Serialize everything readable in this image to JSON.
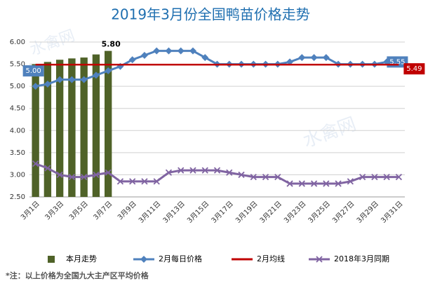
{
  "chart_data": {
    "type": "combo",
    "title": "2019年3月份全国鸭苗价格走势",
    "watermark": "水禽网",
    "footnote": "*注：以上价格为全国九大主产区平均价格",
    "categories": [
      "3月1日",
      null,
      "3月3日",
      null,
      "3月5日",
      null,
      "3月7日",
      null,
      "3月9日",
      null,
      "3月11日",
      null,
      "3月13日",
      null,
      "3月15日",
      null,
      "3月17日",
      null,
      "3月19日",
      null,
      "3月21日",
      null,
      "3月23日",
      null,
      "3月25日",
      null,
      "3月27日",
      null,
      "3月29日",
      null,
      "3月31日"
    ],
    "ylim": [
      2.5,
      6.0
    ],
    "yticks": [
      {
        "value": 2.5,
        "label": "2.50"
      },
      {
        "value": 3.0,
        "label": "3.00"
      },
      {
        "value": 3.5,
        "label": "3.50"
      },
      {
        "value": 4.0,
        "label": "4.00"
      },
      {
        "value": 4.5,
        "label": "4.50"
      },
      {
        "value": 5.0,
        "label": "5.00"
      },
      {
        "value": 5.5,
        "label": "5.50"
      },
      {
        "value": 6.0,
        "label": "6.00"
      }
    ],
    "grid": true,
    "legend": "bottom",
    "series": [
      {
        "name": "本月走势",
        "type": "bar",
        "color": "#4f6228",
        "values": [
          5.5,
          5.55,
          5.6,
          5.63,
          5.65,
          5.72,
          5.8,
          null,
          null,
          null,
          null,
          null,
          null,
          null,
          null,
          null,
          null,
          null,
          null,
          null,
          null,
          null,
          null,
          null,
          null,
          null,
          null,
          null,
          null,
          null,
          null
        ],
        "value_labels": [
          null,
          null,
          null,
          null,
          null,
          null,
          "5.80",
          null,
          null,
          null,
          null,
          null,
          null,
          null,
          null,
          null,
          null,
          null,
          null,
          null,
          null,
          null,
          null,
          null,
          null,
          null,
          null,
          null,
          null,
          null,
          null
        ]
      },
      {
        "name": "2月每日价格",
        "type": "line",
        "marker": "diamond",
        "color": "#4f81bd",
        "values": [
          5.0,
          5.05,
          5.15,
          5.15,
          5.15,
          5.25,
          5.35,
          5.45,
          5.6,
          5.7,
          5.8,
          5.8,
          5.8,
          5.8,
          5.65,
          5.5,
          5.5,
          5.5,
          5.5,
          5.5,
          5.5,
          5.55,
          5.65,
          5.65,
          5.65,
          5.5,
          5.5,
          5.5,
          5.5,
          5.55,
          5.55
        ],
        "value_labels": [
          "5.00",
          null,
          null,
          null,
          null,
          null,
          null,
          null,
          null,
          null,
          null,
          null,
          null,
          null,
          null,
          null,
          null,
          null,
          null,
          null,
          null,
          null,
          null,
          null,
          null,
          null,
          null,
          null,
          null,
          null,
          "5.55"
        ]
      },
      {
        "name": "2月均线",
        "type": "line",
        "marker": "none",
        "color": "#c00000",
        "values": [
          5.49,
          5.49,
          5.49,
          5.49,
          5.49,
          5.49,
          5.49,
          5.49,
          5.49,
          5.49,
          5.49,
          5.49,
          5.49,
          5.49,
          5.49,
          5.49,
          5.49,
          5.49,
          5.49,
          5.49,
          5.49,
          5.49,
          5.49,
          5.49,
          5.49,
          5.49,
          5.49,
          5.49,
          5.49,
          5.49,
          5.49
        ],
        "value_labels": [
          null,
          null,
          null,
          null,
          null,
          null,
          null,
          null,
          null,
          null,
          null,
          null,
          null,
          null,
          null,
          null,
          null,
          null,
          null,
          null,
          null,
          null,
          null,
          null,
          null,
          null,
          null,
          null,
          null,
          null,
          "5.49"
        ]
      },
      {
        "name": "2018年3月同期",
        "type": "line",
        "marker": "cross",
        "color": "#8064a2",
        "values": [
          3.25,
          3.15,
          3.0,
          2.95,
          2.95,
          3.0,
          3.05,
          2.85,
          2.85,
          2.85,
          2.85,
          3.05,
          3.1,
          3.1,
          3.1,
          3.1,
          3.05,
          3.0,
          2.95,
          2.95,
          2.95,
          2.8,
          2.8,
          2.8,
          2.8,
          2.8,
          2.85,
          2.95,
          2.95,
          2.95,
          2.95
        ]
      }
    ]
  }
}
